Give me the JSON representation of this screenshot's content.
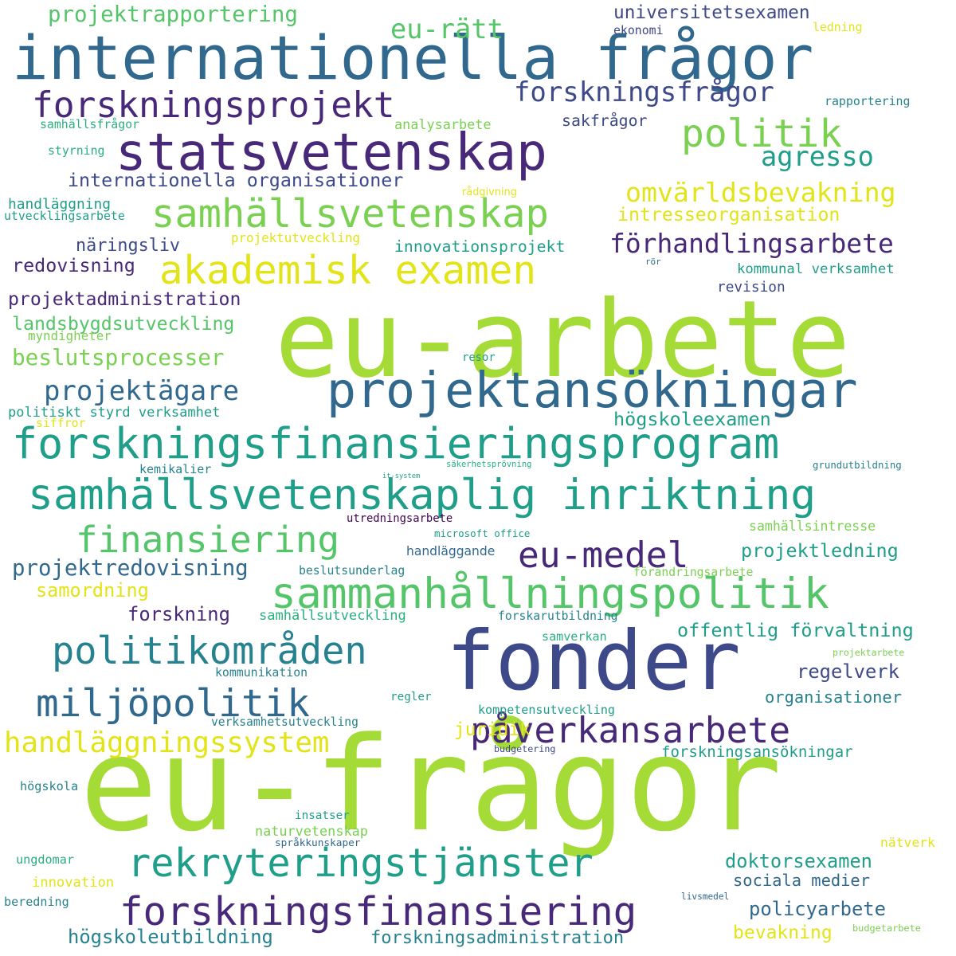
{
  "palette": {
    "background": "#ffffff",
    "lime": "#a5db36",
    "yellow": "#e2e418",
    "green": "#7ad151",
    "light_green": "#54c568",
    "teal_green": "#2ab07f",
    "teal": "#1f9e89",
    "blue_teal": "#26828e",
    "steel_blue": "#31688e",
    "slate_blue": "#3e4989",
    "indigo": "#482878",
    "dark_purple": "#440154"
  },
  "words": [
    {
      "text": "eu-frågor",
      "color": "lime"
    },
    {
      "text": "eu-arbete",
      "color": "lime"
    },
    {
      "text": "fonder",
      "color": "slate_blue"
    },
    {
      "text": "internationella frågor",
      "color": "steel_blue"
    },
    {
      "text": "statsvetenskap",
      "color": "indigo"
    },
    {
      "text": "forskningsprojekt",
      "color": "indigo"
    },
    {
      "text": "projektansökningar",
      "color": "steel_blue"
    },
    {
      "text": "forskningsfinansieringsprogram",
      "color": "teal"
    },
    {
      "text": "samhällsvetenskaplig inriktning",
      "color": "teal"
    },
    {
      "text": "sammanhållningspolitik",
      "color": "light_green"
    },
    {
      "text": "akademisk examen",
      "color": "yellow"
    },
    {
      "text": "samhällsvetenskap",
      "color": "green"
    },
    {
      "text": "politik",
      "color": "green"
    },
    {
      "text": "forskningsfinansiering",
      "color": "indigo"
    },
    {
      "text": "rekryteringstjänster",
      "color": "teal"
    },
    {
      "text": "politikområden",
      "color": "blue_teal"
    },
    {
      "text": "miljöpolitik",
      "color": "steel_blue"
    },
    {
      "text": "finansiering",
      "color": "light_green"
    },
    {
      "text": "eu-medel",
      "color": "indigo"
    },
    {
      "text": "handläggningssystem",
      "color": "yellow"
    },
    {
      "text": "påverkansarbete",
      "color": "indigo"
    },
    {
      "text": "forskningsfrågor",
      "color": "slate_blue"
    },
    {
      "text": "omvärldsbevakning",
      "color": "yellow"
    },
    {
      "text": "förhandlingsarbete",
      "color": "indigo"
    },
    {
      "text": "agresso",
      "color": "teal"
    },
    {
      "text": "eu-rätt",
      "color": "light_green"
    },
    {
      "text": "projektrapportering",
      "color": "light_green"
    },
    {
      "text": "projektägare",
      "color": "steel_blue"
    },
    {
      "text": "internationella organisationer",
      "color": "slate_blue"
    },
    {
      "text": "universitetsexamen",
      "color": "slate_blue"
    },
    {
      "text": "intresseorganisation",
      "color": "yellow"
    },
    {
      "text": "projektredovisning",
      "color": "steel_blue"
    },
    {
      "text": "beslutsprocesser",
      "color": "green"
    },
    {
      "text": "landsbygdsutveckling",
      "color": "light_green"
    },
    {
      "text": "projektadministration",
      "color": "indigo"
    },
    {
      "text": "redovisning",
      "color": "indigo"
    },
    {
      "text": "offentlig förvaltning",
      "color": "teal"
    },
    {
      "text": "projektledning",
      "color": "teal"
    },
    {
      "text": "doktorsexamen",
      "color": "teal"
    },
    {
      "text": "sociala medier",
      "color": "steel_blue"
    },
    {
      "text": "policyarbete",
      "color": "steel_blue"
    },
    {
      "text": "högskoleutbildning",
      "color": "blue_teal"
    },
    {
      "text": "forskningsadministration",
      "color": "blue_teal"
    },
    {
      "text": "högskoleexamen",
      "color": "teal"
    },
    {
      "text": "samordning",
      "color": "yellow"
    },
    {
      "text": "forskning",
      "color": "indigo"
    },
    {
      "text": "regelverk",
      "color": "slate_blue"
    },
    {
      "text": "organisationer",
      "color": "blue_teal"
    },
    {
      "text": "juridik",
      "color": "yellow"
    },
    {
      "text": "bevakning",
      "color": "yellow"
    },
    {
      "text": "samhällsintresse",
      "color": "green"
    },
    {
      "text": "kommunal verksamhet",
      "color": "teal"
    },
    {
      "text": "näringsliv",
      "color": "slate_blue"
    },
    {
      "text": "projektutveckling",
      "color": "yellow"
    },
    {
      "text": "innovationsprojekt",
      "color": "teal"
    },
    {
      "text": "handläggning",
      "color": "teal"
    },
    {
      "text": "utvecklingsarbete",
      "color": "teal"
    },
    {
      "text": "rådgivning",
      "color": "yellow"
    },
    {
      "text": "samhällsfrågor",
      "color": "teal_green"
    },
    {
      "text": "analysarbete",
      "color": "green"
    },
    {
      "text": "sakfrågor",
      "color": "slate_blue"
    },
    {
      "text": "styrning",
      "color": "teal_green"
    },
    {
      "text": "ekonomi",
      "color": "slate_blue"
    },
    {
      "text": "ledning",
      "color": "yellow"
    },
    {
      "text": "rapportering",
      "color": "blue_teal"
    },
    {
      "text": "revision",
      "color": "slate_blue"
    },
    {
      "text": "rör",
      "color": "steel_blue"
    },
    {
      "text": "myndigheter",
      "color": "green"
    },
    {
      "text": "resor",
      "color": "teal"
    },
    {
      "text": "politiskt styrd verksamhet",
      "color": "teal"
    },
    {
      "text": "siffror",
      "color": "yellow"
    },
    {
      "text": "kemikalier",
      "color": "blue_teal"
    },
    {
      "text": "säkerhetsprövning",
      "color": "teal_green"
    },
    {
      "text": "it-system",
      "color": "teal"
    },
    {
      "text": "grundutbildning",
      "color": "blue_teal"
    },
    {
      "text": "utredningsarbete",
      "color": "dark_purple"
    },
    {
      "text": "microsoft office",
      "color": "teal"
    },
    {
      "text": "handläggande",
      "color": "steel_blue"
    },
    {
      "text": "beslutsunderlag",
      "color": "blue_teal"
    },
    {
      "text": "förändringsarbete",
      "color": "green"
    },
    {
      "text": "samhällsutveckling",
      "color": "teal_green"
    },
    {
      "text": "forskarutbildning",
      "color": "blue_teal"
    },
    {
      "text": "samverkan",
      "color": "teal_green"
    },
    {
      "text": "projektarbete",
      "color": "green"
    },
    {
      "text": "kommunikation",
      "color": "blue_teal"
    },
    {
      "text": "regler",
      "color": "teal"
    },
    {
      "text": "kompetensutveckling",
      "color": "teal"
    },
    {
      "text": "verksamhetsutveckling",
      "color": "blue_teal"
    },
    {
      "text": "budgetering",
      "color": "slate_blue"
    },
    {
      "text": "forskningsansökningar",
      "color": "teal"
    },
    {
      "text": "högskola",
      "color": "blue_teal"
    },
    {
      "text": "insatser",
      "color": "teal"
    },
    {
      "text": "naturvetenskap",
      "color": "green"
    },
    {
      "text": "språkkunskaper",
      "color": "steel_blue"
    },
    {
      "text": "nätverk",
      "color": "yellow"
    },
    {
      "text": "ungdomar",
      "color": "teal_green"
    },
    {
      "text": "innovation",
      "color": "yellow"
    },
    {
      "text": "beredning",
      "color": "blue_teal"
    },
    {
      "text": "livsmedel",
      "color": "steel_blue"
    },
    {
      "text": "budgetarbete",
      "color": "green"
    }
  ]
}
